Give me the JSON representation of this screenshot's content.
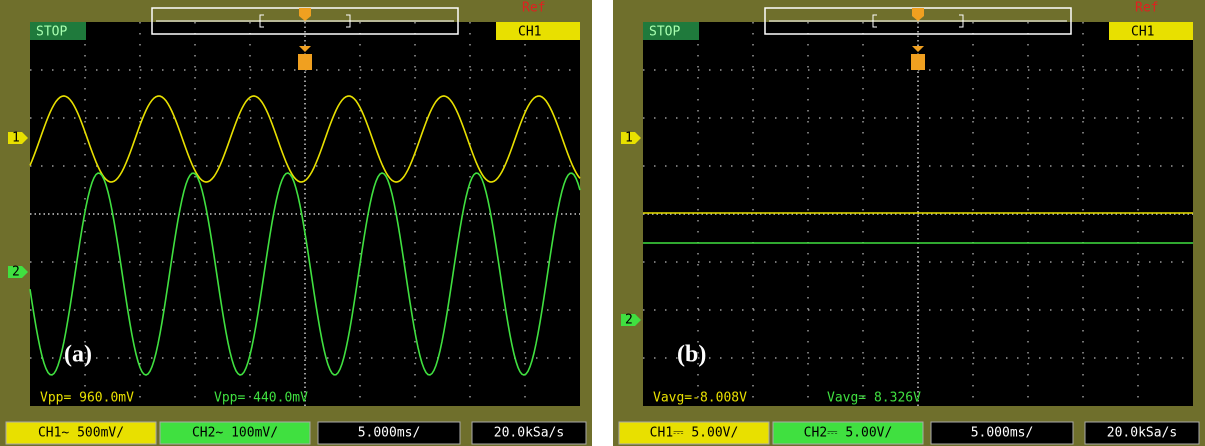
{
  "panels": [
    {
      "status": "STOP",
      "ref": "Ref",
      "trigger_channel": "CH1",
      "label": "(a)",
      "markers": [
        "1",
        "2"
      ],
      "measurements": [
        "Vpp= 960.0mV",
        "Vpp= 440.0mV"
      ],
      "footer": [
        "CH1~ 500mV/",
        "CH2~ 100mV/",
        "5.000ms/",
        "20.0kSa/s"
      ]
    },
    {
      "status": "STOP",
      "ref": "Ref",
      "trigger_channel": "CH1",
      "label": "(b)",
      "markers": [
        "1",
        "2"
      ],
      "measurements": [
        "Vavg=-8.008V",
        "Vavg= 8.326V"
      ],
      "footer": [
        "CH1⎓ 5.00V/",
        "CH2⎓ 5.00V/",
        "5.000ms/",
        "20.0kSa/s"
      ]
    }
  ]
}
